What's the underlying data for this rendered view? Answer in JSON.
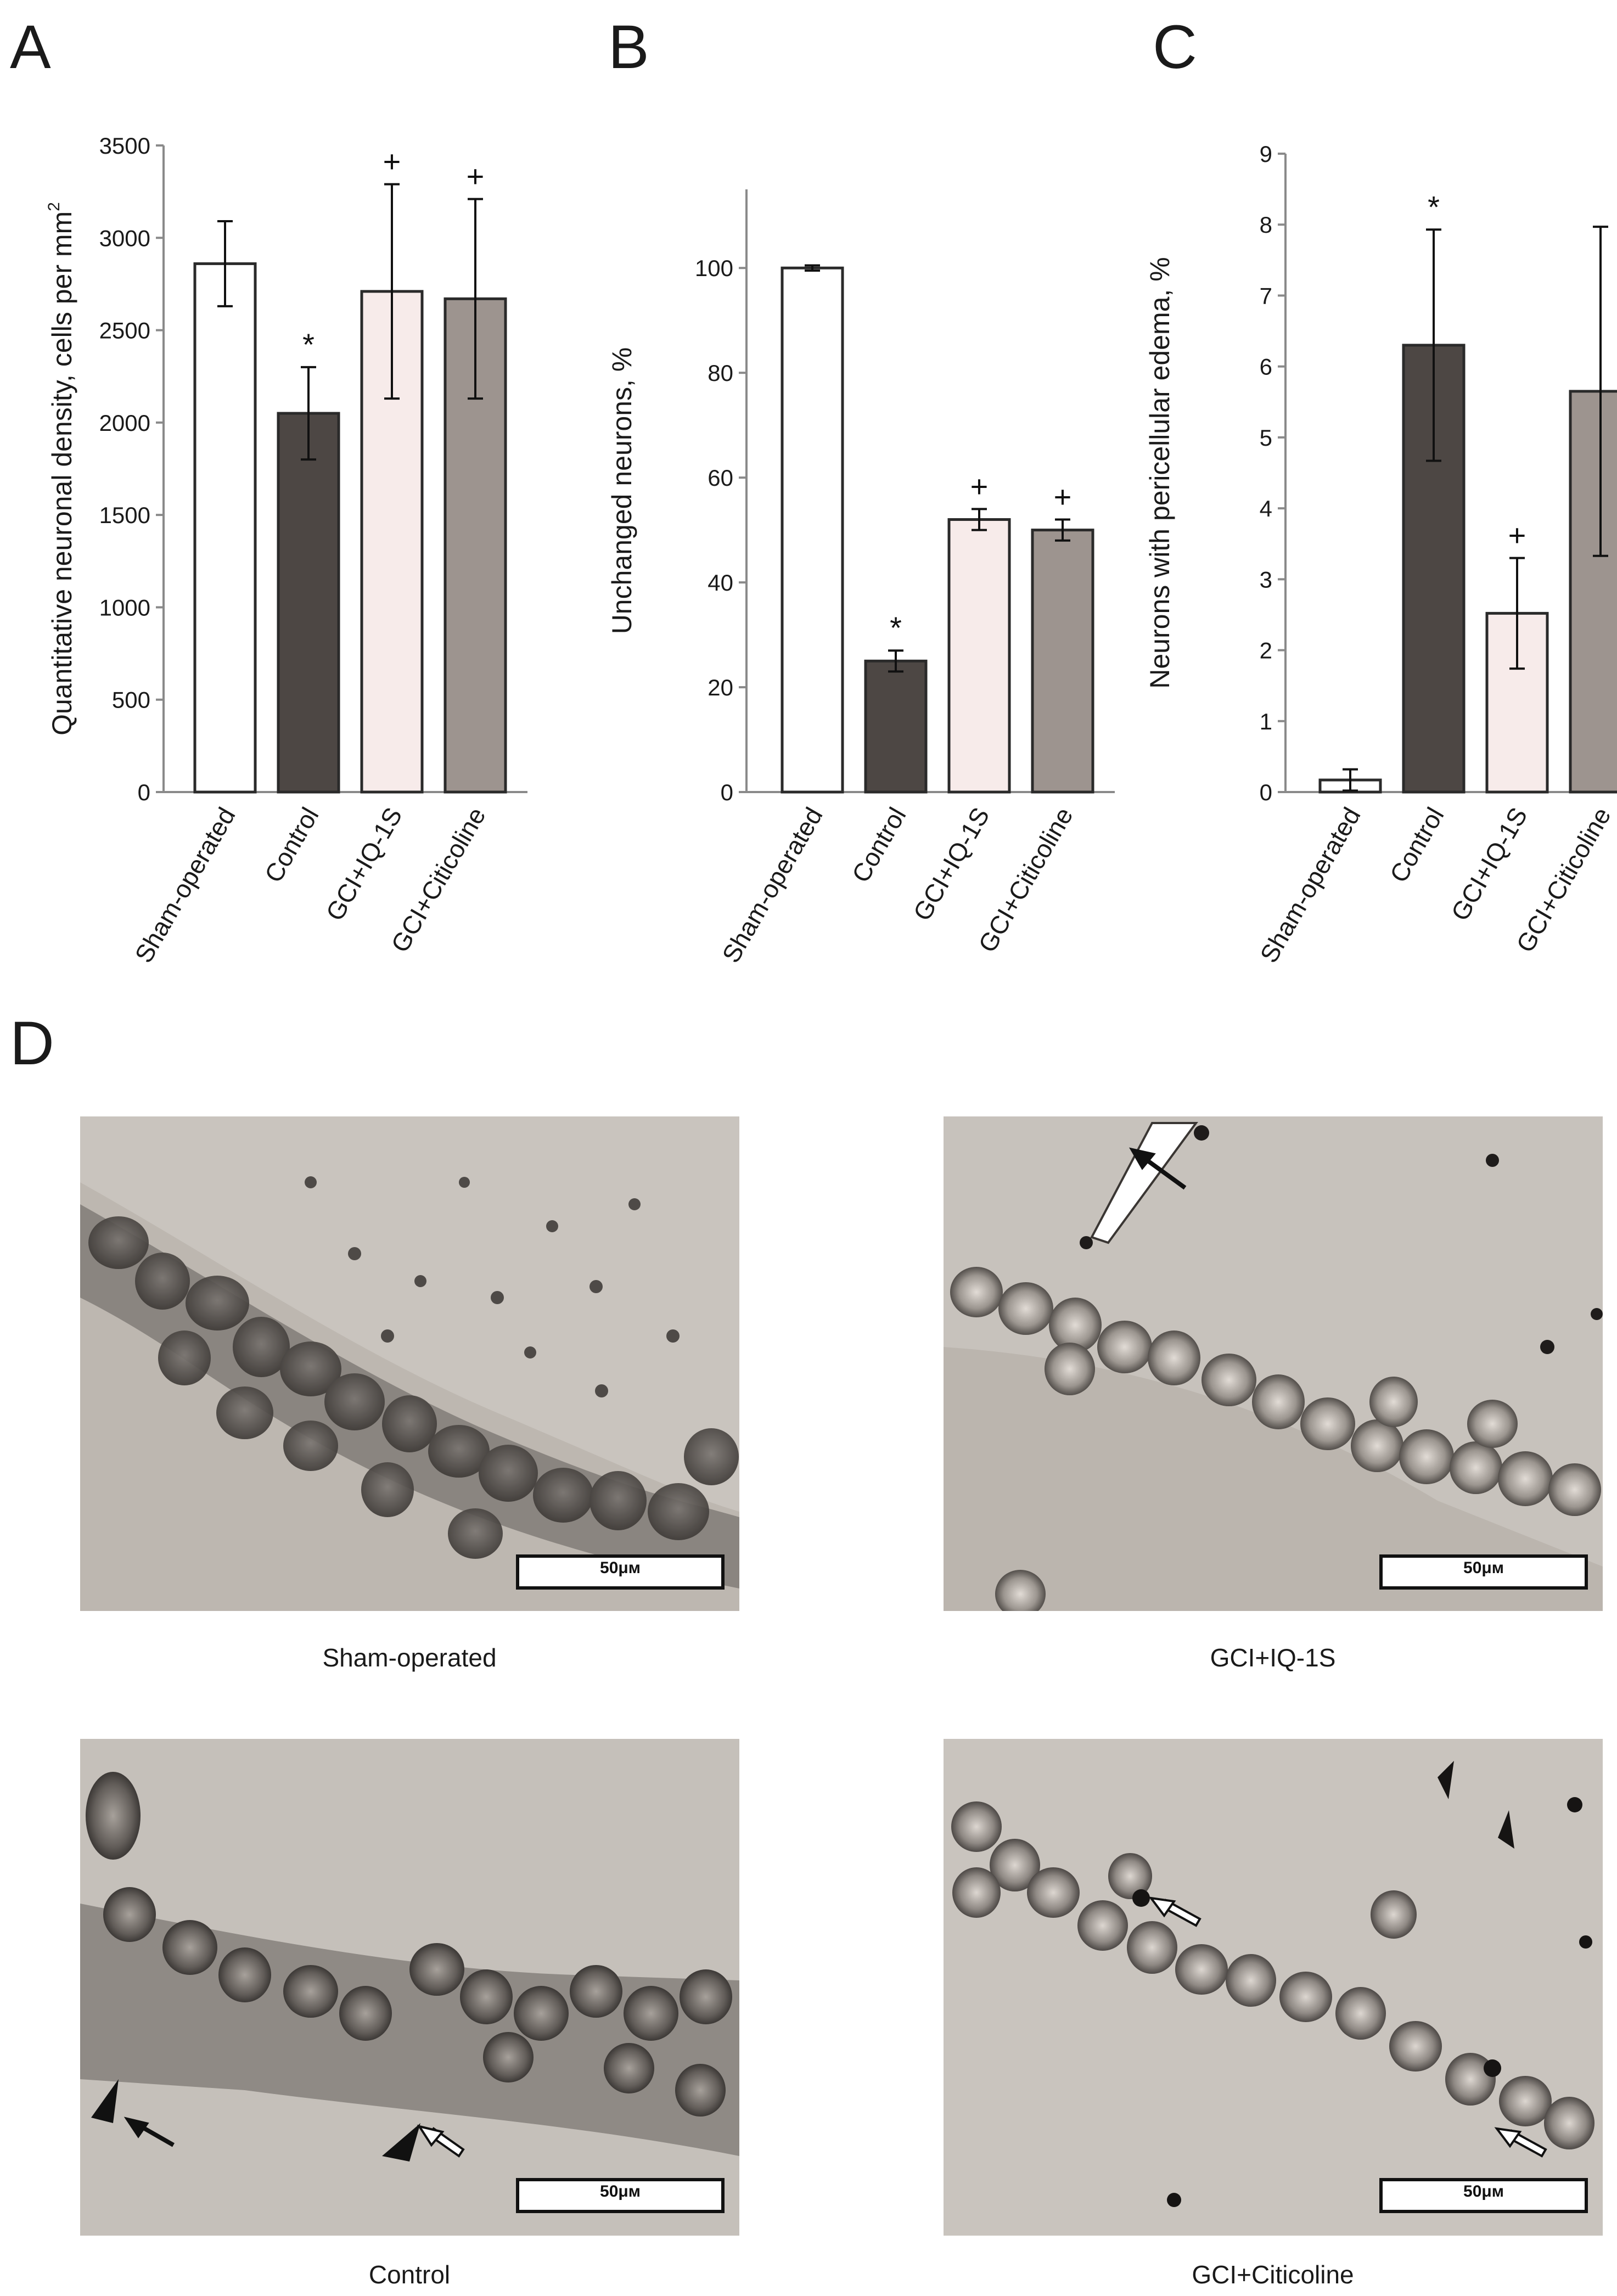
{
  "panels": {
    "A": "A",
    "B": "B",
    "C": "C",
    "D": "D"
  },
  "colors": {
    "sham": "#ffffff",
    "control": "#4d4744",
    "iq1s": "#f7ebea",
    "citicoline": "#9d948f",
    "axis": "#8a8a8a",
    "bar_edge": "#2a2a2a"
  },
  "chart_data": [
    {
      "panel": "A",
      "type": "bar",
      "categories": [
        "Sham-operated",
        "Control",
        "GCI+IQ-1S",
        "GCI+Citicoline"
      ],
      "values": [
        2860,
        2050,
        2710,
        2670
      ],
      "errors": [
        230,
        250,
        580,
        540
      ],
      "markers": [
        "",
        "*",
        "+",
        "+"
      ],
      "ylabel_main": "Quantitative neuronal density, cells per mm",
      "ylabel_sup": "2",
      "ylim": [
        0,
        3500
      ],
      "yticks": [
        0,
        500,
        1000,
        1500,
        2000,
        2500,
        3000,
        3500
      ],
      "grid": false
    },
    {
      "panel": "B",
      "type": "bar",
      "categories": [
        "Sham-operated",
        "Control",
        "GCI+IQ-1S",
        "GCI+Citicoline"
      ],
      "values": [
        100,
        25,
        52,
        50
      ],
      "errors": [
        0.5,
        2,
        2,
        2
      ],
      "markers": [
        "",
        "*",
        "+",
        "+"
      ],
      "ylabel_main": "Unchanged neurons, %",
      "ylabel_sup": "",
      "ylim": [
        0,
        115
      ],
      "yticks": [
        0,
        20,
        40,
        60,
        80,
        100
      ],
      "grid": false
    },
    {
      "panel": "C",
      "type": "bar",
      "categories": [
        "Sham-operated",
        "Control",
        "GCI+IQ-1S",
        "GCI+Citicoline"
      ],
      "values": [
        0.17,
        6.3,
        2.52,
        5.65
      ],
      "errors": [
        0.15,
        1.63,
        0.78,
        2.32
      ],
      "markers": [
        "",
        "*",
        "+",
        ""
      ],
      "ylabel_main": "Neurons with pericellular edema, %",
      "ylabel_sup": "",
      "ylim": [
        0,
        9
      ],
      "yticks": [
        0,
        1,
        2,
        3,
        4,
        5,
        6,
        7,
        8,
        9
      ],
      "grid": false
    }
  ],
  "micrographs": {
    "scale_label": "50μм",
    "sham": "Sham-operated",
    "iq1s": "GCI+IQ-1S",
    "control": "Control",
    "citicoline": "GCI+Citicoline"
  }
}
